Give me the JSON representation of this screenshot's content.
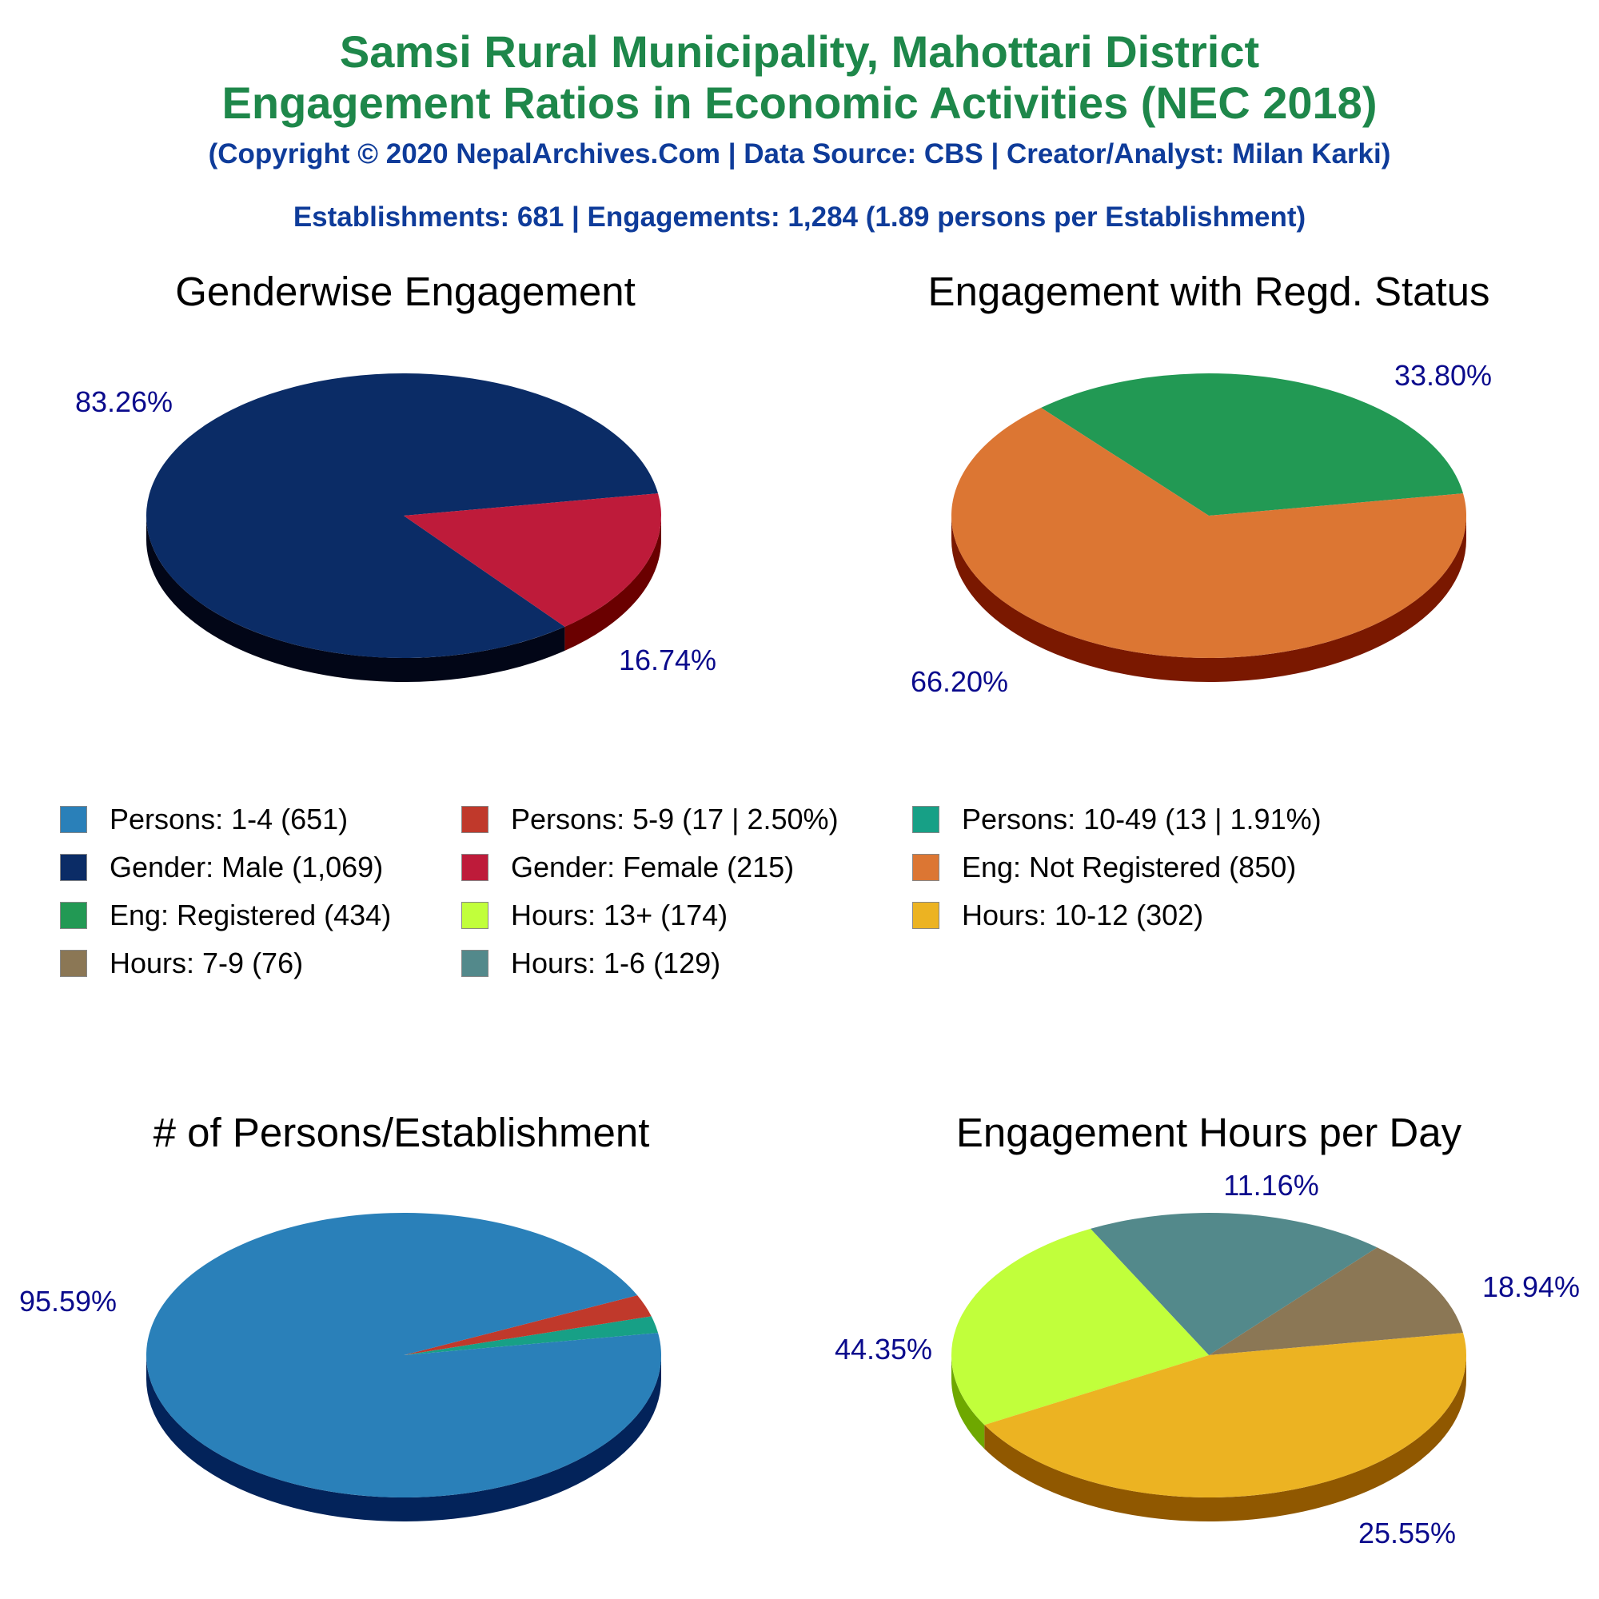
{
  "header": {
    "title_line1": "Samsi Rural Municipality, Mahottari District",
    "title_line2": "Engagement Ratios in Economic Activities (NEC 2018)",
    "copyright": "(Copyright © 2020 NepalArchives.Com | Data Source: CBS | Creator/Analyst: Milan Karki)",
    "summary": "Establishments: 681 | Engagements: 1,284 (1.89 persons per Establishment)"
  },
  "chart_data": [
    {
      "type": "pie",
      "title": "Genderwise Engagement",
      "slices": [
        {
          "label": "Gender: Male",
          "value": 1069,
          "pct_label": "83.26%",
          "color": "#0b2c66",
          "side": "#020617"
        },
        {
          "label": "Gender: Female",
          "value": 215,
          "pct_label": "16.74%",
          "color": "#be1b3a",
          "side": "#6a0000"
        }
      ]
    },
    {
      "type": "pie",
      "title": "Engagement with Regd. Status",
      "slices": [
        {
          "label": "Eng: Registered",
          "value": 434,
          "pct_label": "33.80%",
          "color": "#229954",
          "side": "#0c5a26"
        },
        {
          "label": "Eng: Not Registered",
          "value": 850,
          "pct_label": "66.20%",
          "color": "#dc7633",
          "side": "#7a1800"
        }
      ]
    },
    {
      "type": "pie",
      "title": "# of Persons/Establishment",
      "slices": [
        {
          "label": "Persons: 10-49",
          "value": 13,
          "pct_label": "",
          "color": "#17a086",
          "side": "#0b4a3c"
        },
        {
          "label": "Persons: 5-9",
          "value": 17,
          "pct_label": "",
          "color": "#c0392b",
          "side": "#6a0000"
        },
        {
          "label": "Persons: 1-4",
          "value": 651,
          "pct_label": "95.59%",
          "color": "#2a80b9",
          "side": "#03235a"
        }
      ]
    },
    {
      "type": "pie",
      "title": "Engagement Hours per Day",
      "slices": [
        {
          "label": "Hours: 7-9",
          "value": 76,
          "pct_label": "11.16%",
          "color": "#8b7755",
          "side": "#4a3a20"
        },
        {
          "label": "Hours: 1-6",
          "value": 129,
          "pct_label": "18.94%",
          "color": "#53898b",
          "side": "#1f4648"
        },
        {
          "label": "Hours: 13+",
          "value": 174,
          "pct_label": "25.55%",
          "color": "#c1ff3b",
          "side": "#6ea800"
        },
        {
          "label": "Hours: 10-12",
          "value": 302,
          "pct_label": "44.35%",
          "color": "#ecb322",
          "side": "#905800"
        }
      ]
    }
  ],
  "legend": [
    {
      "label": "Persons: 1-4 (651)",
      "color": "#2a80b9"
    },
    {
      "label": "Persons: 5-9 (17 | 2.50%)",
      "color": "#c0392b"
    },
    {
      "label": "Persons: 10-49 (13 | 1.91%)",
      "color": "#17a086"
    },
    {
      "label": "Gender: Male (1,069)",
      "color": "#0b2c66"
    },
    {
      "label": "Gender: Female (215)",
      "color": "#be1b3a"
    },
    {
      "label": "Eng: Not Registered (850)",
      "color": "#dc7633"
    },
    {
      "label": "Eng: Registered (434)",
      "color": "#229954"
    },
    {
      "label": "Hours: 13+ (174)",
      "color": "#c1ff3b"
    },
    {
      "label": "Hours: 10-12 (302)",
      "color": "#ecb322"
    },
    {
      "label": "Hours: 7-9 (76)",
      "color": "#8b7755"
    },
    {
      "label": "Hours: 1-6 (129)",
      "color": "#53898b"
    }
  ]
}
